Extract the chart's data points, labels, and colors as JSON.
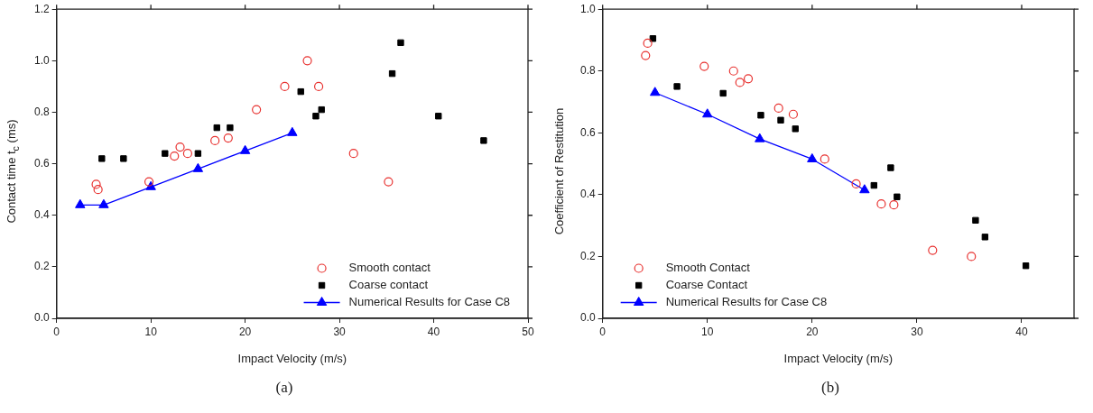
{
  "chart_data": [
    {
      "type": "scatter",
      "xlabel": "Impact Velocity (m/s)",
      "ylabel": "Contact time  t$_{c}$ (ms)",
      "annotations": [
        "(a)"
      ],
      "xlim": [
        0,
        50
      ],
      "xticks": [
        0,
        10,
        20,
        30,
        40,
        50
      ],
      "ylim": [
        0,
        1.2
      ],
      "yticks": [
        {
          "value": 0,
          "label": "0.0"
        },
        {
          "value": 0.2,
          "label": "0.2"
        },
        {
          "value": 0.4,
          "label": "0.4"
        },
        {
          "value": 0.6,
          "label": "0.6"
        },
        {
          "value": 0.8,
          "label": "0.8"
        },
        {
          "value": 1.0,
          "label": "1.0"
        },
        {
          "value": 1.2,
          "label": "1.2"
        }
      ],
      "grid": false,
      "legend": "bottom right",
      "series": [
        {
          "name": "Smooth contact",
          "marker": "circle",
          "color": "#e8312f",
          "x": [
            4.2,
            4.4,
            9.8,
            12.5,
            13.1,
            13.9,
            16.8,
            18.2,
            21.2,
            24.2,
            26.6,
            27.8,
            31.5,
            35.2
          ],
          "values": [
            0.52,
            0.5,
            0.53,
            0.63,
            0.665,
            0.64,
            0.69,
            0.7,
            0.81,
            0.9,
            1.0,
            0.9,
            0.64,
            0.53
          ]
        },
        {
          "name": "Coarse contact",
          "marker": "square",
          "color": "#000000",
          "x": [
            4.8,
            7.1,
            11.5,
            15.0,
            17.0,
            18.4,
            25.9,
            27.5,
            28.1,
            35.6,
            36.5,
            40.5,
            45.3
          ],
          "values": [
            0.62,
            0.62,
            0.64,
            0.64,
            0.74,
            0.74,
            0.88,
            0.785,
            0.81,
            0.95,
            1.07,
            0.785,
            0.69
          ]
        },
        {
          "name": "Numerical Results for Case C8",
          "type": "line",
          "marker": "triangle",
          "line_style": "solid",
          "color": "#0000ff",
          "x": [
            2.5,
            5,
            10,
            15,
            20,
            25
          ],
          "values": [
            0.44,
            0.44,
            0.51,
            0.58,
            0.65,
            0.72
          ]
        }
      ]
    },
    {
      "type": "scatter",
      "xlabel": "Impact Velocity (m/s)",
      "ylabel": "Coefficient of Restitution",
      "annotations": [
        "(b)"
      ],
      "xlim": [
        0,
        45
      ],
      "xticks": [
        0,
        10,
        20,
        30,
        40
      ],
      "ylim": [
        0,
        1.0
      ],
      "yticks": [
        {
          "value": 0,
          "label": "0.0"
        },
        {
          "value": 0.2,
          "label": "0.2"
        },
        {
          "value": 0.4,
          "label": "0.4"
        },
        {
          "value": 0.6,
          "label": "0.6"
        },
        {
          "value": 0.8,
          "label": "0.8"
        },
        {
          "value": 1.0,
          "label": "1.0"
        }
      ],
      "grid": false,
      "legend": "bottom left",
      "series": [
        {
          "name": "Smooth Contact",
          "marker": "circle",
          "color": "#e8312f",
          "x": [
            4.1,
            4.3,
            9.7,
            12.5,
            13.1,
            13.9,
            16.8,
            18.2,
            21.2,
            24.2,
            26.6,
            27.8,
            31.5,
            35.2
          ],
          "values": [
            0.85,
            0.89,
            0.815,
            0.8,
            0.763,
            0.775,
            0.68,
            0.66,
            0.515,
            0.435,
            0.37,
            0.367,
            0.22,
            0.2
          ]
        },
        {
          "name": "Coarse Contact",
          "marker": "square",
          "color": "#000000",
          "x": [
            4.8,
            7.1,
            11.5,
            15.1,
            17.0,
            18.4,
            25.9,
            27.5,
            28.1,
            35.6,
            36.5,
            40.4
          ],
          "values": [
            0.905,
            0.75,
            0.728,
            0.657,
            0.641,
            0.613,
            0.43,
            0.487,
            0.393,
            0.317,
            0.263,
            0.17
          ]
        },
        {
          "name": "Numerical Results for Case C8",
          "type": "line",
          "marker": "triangle",
          "line_style": "solid",
          "color": "#0000ff",
          "x": [
            5,
            10,
            15,
            20,
            25
          ],
          "values": [
            0.73,
            0.66,
            0.58,
            0.515,
            0.415
          ]
        }
      ]
    }
  ]
}
